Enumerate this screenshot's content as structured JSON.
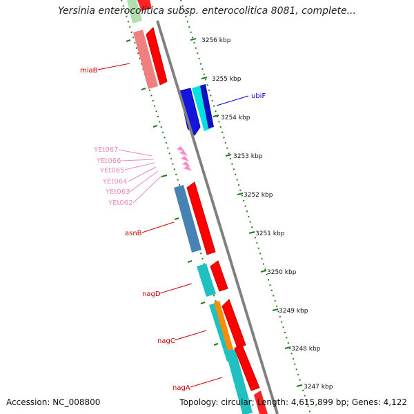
{
  "title": "Yersinia enterocolitica subsp. enterocolitica 8081, complete...",
  "footer": {
    "accession_label": "Accession:",
    "accession": "NC_008800",
    "topology_label": "Topology:",
    "topology": "circular",
    "length_label": "Length:",
    "length": "4,615,899 bp",
    "genes_label": "Genes:",
    "genes": "4,122"
  },
  "colors": {
    "backbone": "#808080",
    "tick": "#1f7a1f",
    "forward_gene": "#ff0000",
    "reverse_gene": "#00cccc",
    "label_red": "#cc0000",
    "label_blue": "#0000cc",
    "label_pink": "#ee88bb"
  },
  "ticks": [
    "3256 kbp",
    "3255 kbp",
    "3254 kbp",
    "3253 kbp",
    "3252 kbp",
    "3251 kbp",
    "3250 kbp",
    "3249 kbp",
    "3248 kbp",
    "3247 kbp"
  ],
  "gene_labels": {
    "miaB": "miaB",
    "ubiF": "ubiF",
    "YEt067": "YEt067",
    "YEt066": "YEt066",
    "YEt065": "YEt065",
    "YEt064": "YEt064",
    "YEt063": "YEt063",
    "YEt062": "YEt062",
    "asnB": "asnB",
    "nagD": "nagD",
    "nagC": "nagC",
    "nagA": "nagA"
  }
}
